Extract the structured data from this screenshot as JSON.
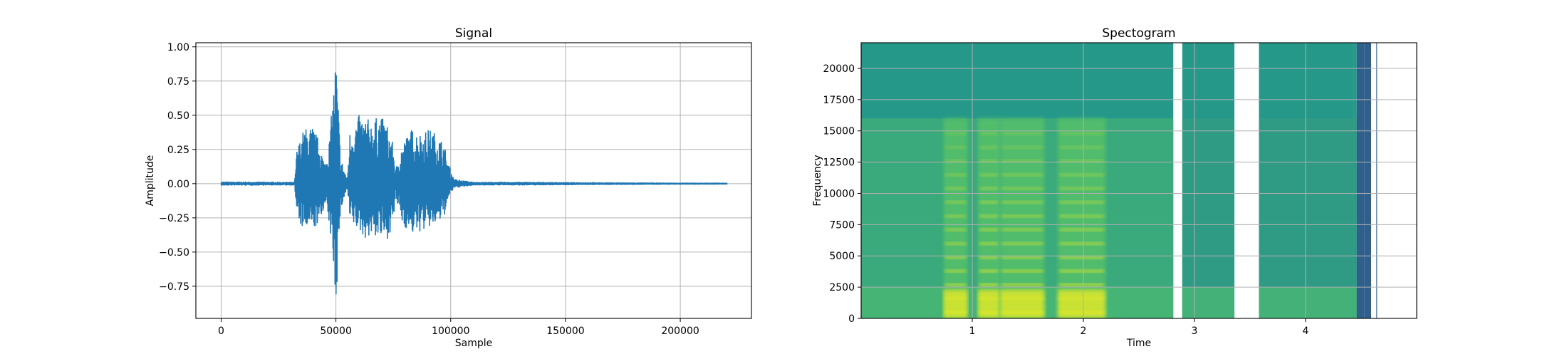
{
  "chart_data": [
    {
      "type": "line",
      "title": "Signal",
      "xlabel": "Sample",
      "ylabel": "Amplitude",
      "xlim": [
        -11000,
        231000
      ],
      "ylim": [
        -0.985,
        1.03
      ],
      "xticks": [
        0,
        50000,
        100000,
        150000,
        200000
      ],
      "xtick_labels": [
        "0",
        "50000",
        "100000",
        "150000",
        "200000"
      ],
      "yticks": [
        -0.75,
        -0.5,
        -0.25,
        0.0,
        0.25,
        0.5,
        0.75,
        1.0
      ],
      "ytick_labels": [
        "−0.75",
        "−0.50",
        "−0.25",
        "0.00",
        "0.25",
        "0.50",
        "0.75",
        "1.00"
      ],
      "grid": true,
      "color": "#1f77b4",
      "series": [
        {
          "x": [
            0,
            32000,
            33000,
            36000,
            40000,
            43000,
            45000,
            47000,
            48500,
            50000,
            51000,
            52000,
            55000,
            56000,
            60000,
            63000,
            66000,
            69000,
            72000,
            75000,
            76000,
            79000,
            83000,
            87000,
            91000,
            94000,
            97000,
            99000,
            101000,
            102000,
            110000,
            130000,
            150000,
            170000,
            200000,
            220500
          ],
          "envelope_max": [
            0.012,
            0.01,
            0.25,
            0.4,
            0.42,
            0.3,
            0.15,
            0.3,
            0.6,
            0.95,
            0.6,
            0.2,
            0.03,
            0.38,
            0.5,
            0.48,
            0.46,
            0.5,
            0.45,
            0.28,
            0.1,
            0.3,
            0.4,
            0.37,
            0.4,
            0.36,
            0.3,
            0.15,
            0.05,
            0.03,
            0.01,
            0.01,
            0.008,
            0.006,
            0.004,
            0.004
          ],
          "envelope_min": [
            -0.012,
            -0.01,
            -0.25,
            -0.35,
            -0.33,
            -0.3,
            -0.15,
            -0.3,
            -0.5,
            -0.9,
            -0.55,
            -0.2,
            -0.03,
            -0.28,
            -0.35,
            -0.4,
            -0.38,
            -0.4,
            -0.42,
            -0.3,
            -0.1,
            -0.3,
            -0.37,
            -0.35,
            -0.32,
            -0.3,
            -0.25,
            -0.12,
            -0.04,
            -0.03,
            -0.01,
            -0.01,
            -0.008,
            -0.006,
            -0.004,
            -0.004
          ]
        }
      ]
    },
    {
      "type": "heatmap",
      "title": "Spectogram",
      "xlabel": "Time",
      "ylabel": "Frequency",
      "xlim": [
        0,
        5.0
      ],
      "ylim": [
        0,
        22050
      ],
      "xticks": [
        1,
        2,
        3,
        4
      ],
      "xtick_labels": [
        "1",
        "2",
        "3",
        "4"
      ],
      "yticks": [
        0,
        2500,
        5000,
        7500,
        10000,
        12500,
        15000,
        17500,
        20000
      ],
      "ytick_labels": [
        "0",
        "2500",
        "5000",
        "7500",
        "10000",
        "12500",
        "15000",
        "17500",
        "20000"
      ],
      "grid": true,
      "colormap": "viridis",
      "colors": {
        "background_teal": "#26988a",
        "mid_green": "#55c06a",
        "bright_yellow": "#dde82a",
        "dark_blue": "#2f5f8a"
      },
      "segments": [
        {
          "t_start": 0.0,
          "t_end": 2.81,
          "kind": "speech"
        },
        {
          "t_start": 2.81,
          "t_end": 2.89,
          "kind": "blank"
        },
        {
          "t_start": 2.89,
          "t_end": 3.36,
          "kind": "noise"
        },
        {
          "t_start": 3.36,
          "t_end": 3.58,
          "kind": "blank"
        },
        {
          "t_start": 3.58,
          "t_end": 4.43,
          "kind": "noise"
        },
        {
          "t_start": 4.43,
          "t_end": 4.46,
          "kind": "noise"
        },
        {
          "t_start": 4.46,
          "t_end": 4.53,
          "kind": "dark"
        },
        {
          "t_start": 4.53,
          "t_end": 4.59,
          "kind": "dark"
        }
      ],
      "bands_hz": {
        "full_band_top": 22050,
        "lowpass_top": 16000
      },
      "speech_regions": [
        {
          "t_start": 0.74,
          "t_end": 0.96,
          "level": 0.8
        },
        {
          "t_start": 1.05,
          "t_end": 1.25,
          "level": 0.95
        },
        {
          "t_start": 1.25,
          "t_end": 1.65,
          "level": 0.85
        },
        {
          "t_start": 1.77,
          "t_end": 2.2,
          "level": 0.9
        }
      ]
    }
  ]
}
